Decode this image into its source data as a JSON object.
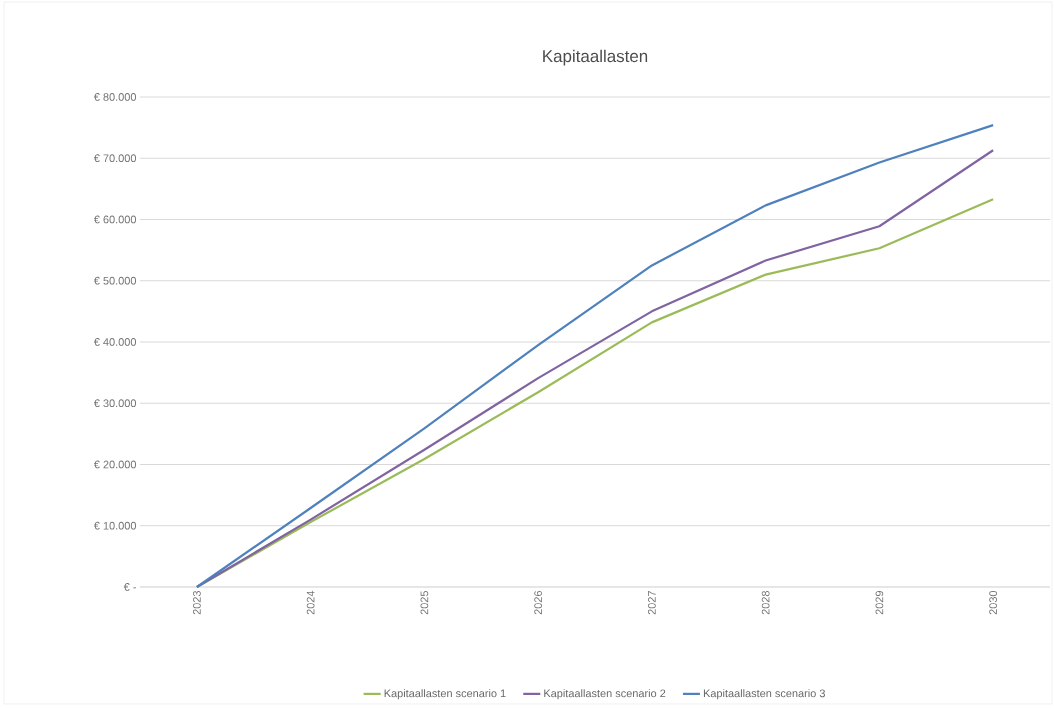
{
  "chart_data": {
    "type": "line",
    "title": "Kapitaallasten",
    "categories": [
      "2023",
      "2024",
      "2025",
      "2026",
      "2027",
      "2028",
      "2029",
      "2030"
    ],
    "series": [
      {
        "name": "Kapitaallasten scenario 1",
        "color": "#9bbb59",
        "values": [
          0,
          10600,
          20900,
          31800,
          43200,
          51000,
          55300,
          63300
        ]
      },
      {
        "name": "Kapitaallasten scenario 2",
        "color": "#8064a2",
        "values": [
          0,
          11000,
          22400,
          34100,
          45000,
          53300,
          58900,
          71300
        ]
      },
      {
        "name": "Kapitaallasten scenario 3",
        "color": "#4f81bd",
        "values": [
          0,
          12900,
          25900,
          39500,
          52500,
          62300,
          69300,
          75400
        ]
      }
    ],
    "ylim": [
      0,
      80000
    ],
    "yticks": [
      {
        "value": 0,
        "label": "€ -"
      },
      {
        "value": 10000,
        "label": "€ 10.000"
      },
      {
        "value": 20000,
        "label": "€ 20.000"
      },
      {
        "value": 30000,
        "label": "€ 30.000"
      },
      {
        "value": 40000,
        "label": "€ 40.000"
      },
      {
        "value": 50000,
        "label": "€ 50.000"
      },
      {
        "value": 60000,
        "label": "€ 60.000"
      },
      {
        "value": 70000,
        "label": "€ 70.000"
      },
      {
        "value": 80000,
        "label": "€ 80.000"
      }
    ],
    "grid": "y",
    "legend": "bottom",
    "marker": "none",
    "line_style": "solid"
  }
}
